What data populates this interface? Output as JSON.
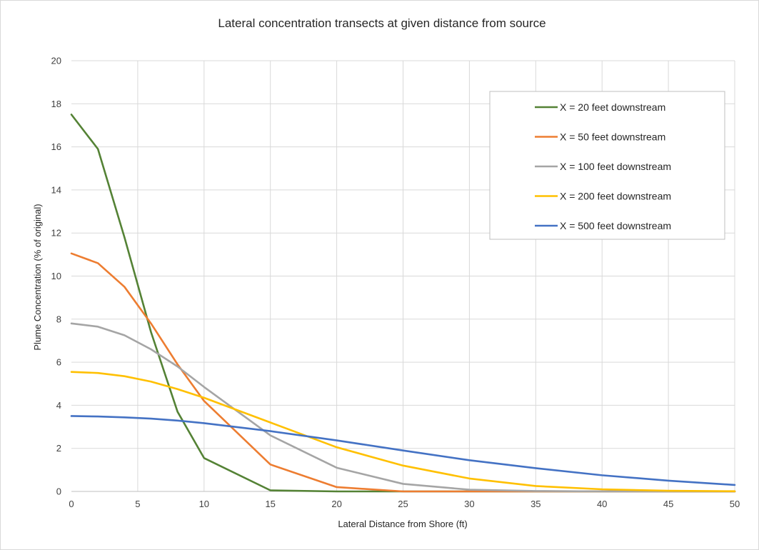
{
  "chart_data": {
    "type": "line",
    "title": "Lateral concentration transects at given distance from source",
    "xlabel": "Lateral Distance from Shore (ft)",
    "ylabel": "Plume Concentration (% of original)",
    "xlim": [
      0,
      50
    ],
    "ylim": [
      0,
      20
    ],
    "x_ticks": [
      0,
      5,
      10,
      15,
      20,
      25,
      30,
      35,
      40,
      45,
      50
    ],
    "y_ticks": [
      0,
      2,
      4,
      6,
      8,
      10,
      12,
      14,
      16,
      18,
      20
    ],
    "grid": true,
    "legend_position": "top-right",
    "x": [
      0,
      2,
      4,
      6,
      8,
      10,
      15,
      20,
      25,
      30,
      35,
      40,
      45,
      50
    ],
    "series": [
      {
        "name": "X = 20 feet downstream",
        "color": "#548235",
        "values": [
          17.5,
          15.9,
          11.8,
          7.4,
          3.7,
          1.55,
          0.05,
          0.0,
          0.0,
          0.0,
          0.0,
          0.0,
          0.0,
          0.0
        ]
      },
      {
        "name": "X = 50 feet downstream",
        "color": "#ED7D31",
        "values": [
          11.05,
          10.6,
          9.5,
          7.8,
          5.9,
          4.2,
          1.25,
          0.2,
          0.0,
          0.0,
          0.0,
          0.0,
          0.0,
          0.0
        ]
      },
      {
        "name": "X = 100 feet downstream",
        "color": "#A5A5A5",
        "values": [
          7.8,
          7.65,
          7.25,
          6.6,
          5.8,
          4.85,
          2.6,
          1.1,
          0.35,
          0.08,
          0.02,
          0.0,
          0.0,
          0.0
        ]
      },
      {
        "name": "X = 200 feet downstream",
        "color": "#FFC000",
        "values": [
          5.55,
          5.5,
          5.35,
          5.1,
          4.75,
          4.35,
          3.2,
          2.05,
          1.2,
          0.6,
          0.25,
          0.1,
          0.03,
          0.01
        ]
      },
      {
        "name": "X = 500 feet downstream",
        "color": "#4472C4",
        "values": [
          3.5,
          3.48,
          3.44,
          3.38,
          3.29,
          3.17,
          2.8,
          2.37,
          1.9,
          1.45,
          1.08,
          0.75,
          0.5,
          0.3
        ]
      }
    ]
  }
}
